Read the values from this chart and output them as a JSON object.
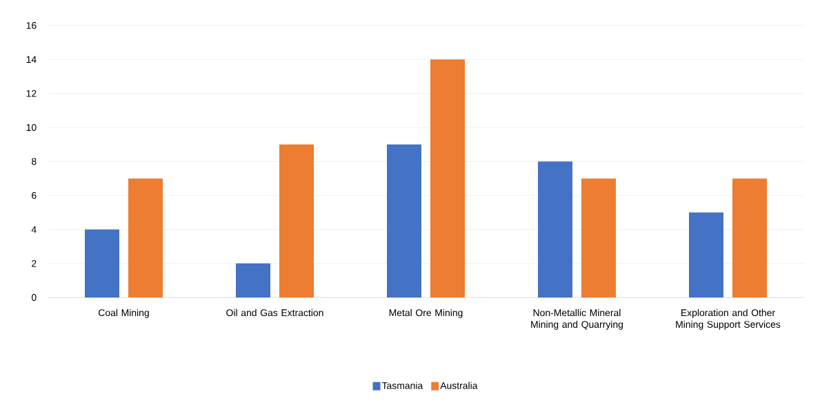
{
  "chart_data": {
    "type": "bar",
    "categories": [
      "Coal Mining",
      "Oil and Gas Extraction",
      "Metal Ore Mining",
      "Non-Metallic Mineral Mining and Quarrying",
      "Exploration and Other Mining Support Services"
    ],
    "series": [
      {
        "name": "Tasmania",
        "color": "#4472c4",
        "values": [
          4,
          2,
          9,
          8,
          5
        ]
      },
      {
        "name": "Australia",
        "color": "#ed7d31",
        "values": [
          7,
          9,
          14,
          7,
          7
        ]
      }
    ],
    "ylim": [
      0,
      16
    ],
    "yticks": [
      0,
      2,
      4,
      6,
      8,
      10,
      12,
      14,
      16
    ],
    "grid": true,
    "legend": "bottom"
  }
}
